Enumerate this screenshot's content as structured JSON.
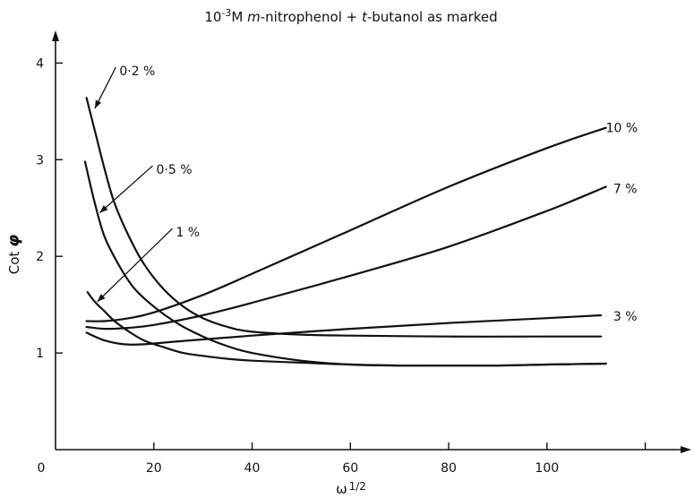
{
  "chart_data": {
    "type": "line",
    "title_parts": {
      "lead": "10",
      "exp": "-3",
      "mid1": "M ",
      "italic1": "m",
      "mid2": "-nitrophenol + ",
      "italic2": "t",
      "tail": "-butanol as marked"
    },
    "xlabel_parts": {
      "base": "ω",
      "exp": "1/2"
    },
    "ylabel_parts": {
      "base": "Cot ",
      "sym": "φ"
    },
    "xlim": [
      0,
      125
    ],
    "ylim": [
      0,
      4.3
    ],
    "x_ticks": [
      {
        "value": 0,
        "label": "0"
      },
      {
        "value": 20,
        "label": "20"
      },
      {
        "value": 40,
        "label": "40"
      },
      {
        "value": 60,
        "label": "60"
      },
      {
        "value": 80,
        "label": "80"
      },
      {
        "value": 100,
        "label": "100"
      },
      {
        "value": 120,
        "label": ""
      }
    ],
    "y_ticks": [
      {
        "value": 1,
        "label": "1"
      },
      {
        "value": 2,
        "label": "2"
      },
      {
        "value": 3,
        "label": "3"
      },
      {
        "value": 4,
        "label": "4"
      }
    ],
    "grid": false,
    "series": [
      {
        "name": "0·2 %",
        "points": [
          [
            6.3,
            3.64
          ],
          [
            8,
            3.3
          ],
          [
            10,
            2.9
          ],
          [
            12,
            2.55
          ],
          [
            15,
            2.2
          ],
          [
            18,
            1.92
          ],
          [
            22,
            1.66
          ],
          [
            26,
            1.48
          ],
          [
            30,
            1.36
          ],
          [
            35,
            1.27
          ],
          [
            40,
            1.22
          ],
          [
            50,
            1.19
          ],
          [
            60,
            1.18
          ],
          [
            80,
            1.17
          ],
          [
            100,
            1.17
          ],
          [
            111,
            1.17
          ]
        ]
      },
      {
        "name": "0·5 %",
        "points": [
          [
            6,
            2.98
          ],
          [
            8,
            2.55
          ],
          [
            10,
            2.2
          ],
          [
            13,
            1.9
          ],
          [
            16,
            1.67
          ],
          [
            20,
            1.48
          ],
          [
            25,
            1.3
          ],
          [
            30,
            1.17
          ],
          [
            35,
            1.07
          ],
          [
            40,
            1.0
          ],
          [
            50,
            0.92
          ],
          [
            60,
            0.88
          ],
          [
            70,
            0.87
          ],
          [
            80,
            0.87
          ],
          [
            90,
            0.87
          ],
          [
            100,
            0.88
          ],
          [
            112,
            0.89
          ]
        ]
      },
      {
        "name": "1 %",
        "points": [
          [
            6.5,
            1.63
          ],
          [
            8,
            1.53
          ],
          [
            10,
            1.43
          ],
          [
            12,
            1.33
          ],
          [
            15,
            1.22
          ],
          [
            18,
            1.13
          ],
          [
            22,
            1.06
          ],
          [
            26,
            1.0
          ],
          [
            30,
            0.97
          ],
          [
            35,
            0.94
          ],
          [
            40,
            0.92
          ],
          [
            50,
            0.9
          ],
          [
            60,
            0.88
          ],
          [
            70,
            0.87
          ],
          [
            80,
            0.87
          ],
          [
            90,
            0.87
          ],
          [
            100,
            0.88
          ],
          [
            112,
            0.89
          ]
        ]
      },
      {
        "name": "3 %",
        "points": [
          [
            6.3,
            1.21
          ],
          [
            10,
            1.13
          ],
          [
            14,
            1.09
          ],
          [
            18,
            1.09
          ],
          [
            25,
            1.12
          ],
          [
            40,
            1.18
          ],
          [
            60,
            1.25
          ],
          [
            80,
            1.31
          ],
          [
            100,
            1.36
          ],
          [
            111,
            1.39
          ]
        ]
      },
      {
        "name": "7 %",
        "points": [
          [
            6.3,
            1.27
          ],
          [
            10,
            1.25
          ],
          [
            15,
            1.26
          ],
          [
            20,
            1.29
          ],
          [
            30,
            1.39
          ],
          [
            40,
            1.52
          ],
          [
            60,
            1.8
          ],
          [
            80,
            2.1
          ],
          [
            100,
            2.47
          ],
          [
            112,
            2.72
          ]
        ]
      },
      {
        "name": "10 %",
        "points": [
          [
            6.3,
            1.33
          ],
          [
            10,
            1.33
          ],
          [
            15,
            1.36
          ],
          [
            20,
            1.42
          ],
          [
            30,
            1.6
          ],
          [
            40,
            1.82
          ],
          [
            60,
            2.27
          ],
          [
            80,
            2.72
          ],
          [
            100,
            3.12
          ],
          [
            112,
            3.33
          ]
        ]
      }
    ],
    "curve_labels": [
      {
        "text": "0·2 %",
        "anchor": [
          8,
          3.53
        ],
        "pos": [
          13,
          3.92
        ]
      },
      {
        "text": "0·5 %",
        "anchor": [
          9,
          2.45
        ],
        "pos": [
          20.5,
          2.9
        ]
      },
      {
        "text": "1 %",
        "anchor": [
          8.5,
          1.53
        ],
        "pos": [
          24.5,
          2.25
        ]
      },
      {
        "text": "10 %",
        "anchor": null,
        "pos": [
          112,
          3.33
        ]
      },
      {
        "text": "7 %",
        "anchor": null,
        "pos": [
          113.5,
          2.7
        ]
      },
      {
        "text": "3 %",
        "anchor": null,
        "pos": [
          113.5,
          1.38
        ]
      }
    ]
  }
}
